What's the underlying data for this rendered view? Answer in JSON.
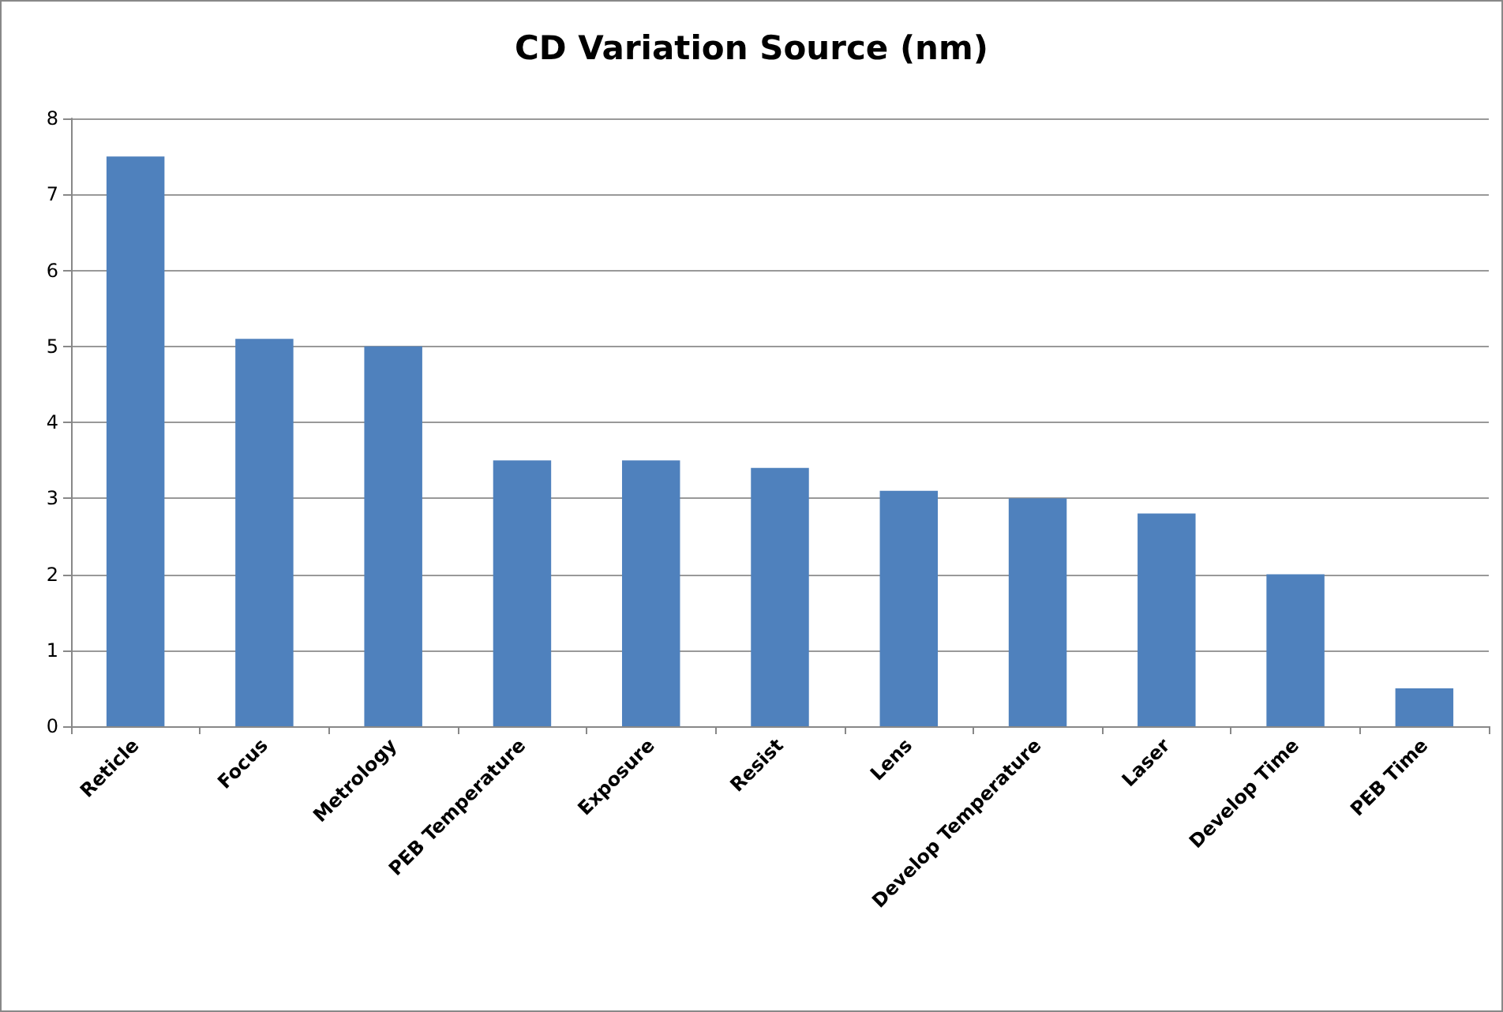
{
  "chart_data": {
    "type": "bar",
    "title": "CD Variation Source (nm)",
    "categories": [
      "Reticle",
      "Focus",
      "Metrology",
      "PEB Temperature",
      "Exposure",
      "Resist",
      "Lens",
      "Develop Temperature",
      "Laser",
      "Develop Time",
      "PEB Time"
    ],
    "values": [
      7.5,
      5.1,
      5.0,
      3.5,
      3.5,
      3.4,
      3.1,
      3.0,
      2.8,
      2.0,
      0.5
    ],
    "color": "#4f81bd",
    "ylim": [
      0,
      8
    ],
    "yticks": [
      0,
      1,
      2,
      3,
      4,
      5,
      6,
      7,
      8
    ],
    "grid": "y"
  }
}
